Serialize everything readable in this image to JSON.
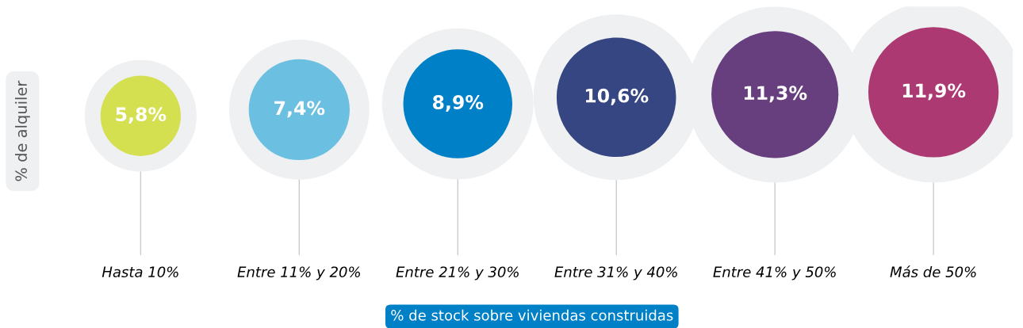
{
  "chart_data": {
    "type": "bubble",
    "categories": [
      "Hasta 10%",
      "Entre 11% y 20%",
      "Entre 21% y 30%",
      "Entre 31% y 40%",
      "Entre 41% y 50%",
      "Más de 50%"
    ],
    "values": [
      5.8,
      7.4,
      8.9,
      10.6,
      11.3,
      11.9
    ],
    "sizes": [
      0.38,
      0.6,
      0.7,
      0.84,
      0.95,
      1
    ],
    "value_labels": [
      "5,8%",
      "7,4%",
      "8,9%",
      "10,6%",
      "11,3%",
      "11,9%"
    ],
    "colors": [
      "#d4e04f",
      "#6bbfe0",
      "#0080c6",
      "#364682",
      "#673f7e",
      "#ad3972"
    ],
    "xlabel": "% de stock sobre viviendas construidas",
    "ylabel": "% de alquiler",
    "tick_labels": "x",
    "grid": "x",
    "legend": false
  }
}
